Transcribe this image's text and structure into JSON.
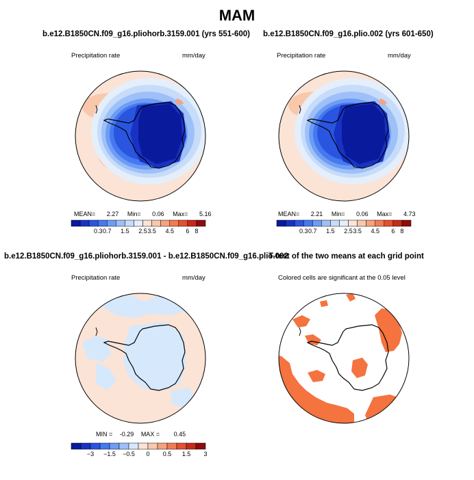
{
  "title": "MAM",
  "colors": {
    "deep_blue": "#0a1a9c",
    "coast": "#000000",
    "sig": "#f4733f"
  },
  "panels": [
    {
      "title": "b.e12.B1850CN.f09_g16.pliohorb.3159.001 (yrs 551-600)",
      "left_label": "Precipitation rate",
      "right_label": "mm/day",
      "stats": {
        "mean_label": "MEAN=",
        "mean": "2.27",
        "min_label": "Min=",
        "min": "0.06",
        "max_label": "Max=",
        "max": "5.16"
      }
    },
    {
      "title": "b.e12.B1850CN.f09_g16.plio.002 (yrs 601-650)",
      "left_label": "Precipitation rate",
      "right_label": "mm/day",
      "stats": {
        "mean_label": "MEAN=",
        "mean": "2.21",
        "min_label": "Min=",
        "min": "0.06",
        "max_label": "Max=",
        "max": "4.73"
      }
    },
    {
      "title": "b.e12.B1850CN.f09_g16.pliohorb.3159.001 - b.e12.B1850CN.f09_g16.plio.002",
      "left_label": "Precipitation rate",
      "right_label": "mm/day",
      "stats": {
        "min_label": "MIN =",
        "min": "-0.29",
        "max_label": "MAX =",
        "max": "0.45"
      }
    },
    {
      "title": "T-test of the two means at each grid point",
      "center_label": "Colored cells are significant at the 0.05 level"
    }
  ],
  "chart_data": [
    {
      "type": "heatmap",
      "title": "b.e12.B1850CN.f09_g16.pliohorb.3159.001 (yrs 551-600)",
      "variable": "Precipitation rate",
      "units": "mm/day",
      "projection": "south polar stereographic",
      "colorbar": {
        "tick_labels": [
          "0.3",
          "0.7",
          "1.5",
          "2.5",
          "3.5",
          "4.5",
          "6",
          "8"
        ],
        "colors": [
          "#0a1a9c",
          "#1732c4",
          "#2a55e0",
          "#4479ef",
          "#6e9cf4",
          "#9ec0f8",
          "#c6dcfa",
          "#e4effb",
          "#fbe3d6",
          "#f9c8ab",
          "#f6a27e",
          "#f27b53",
          "#e4502f",
          "#c62a1b",
          "#8f0c0c"
        ]
      },
      "stats": {
        "mean": 2.27,
        "min": 0.06,
        "max": 5.16
      }
    },
    {
      "type": "heatmap",
      "title": "b.e12.B1850CN.f09_g16.plio.002 (yrs 601-650)",
      "variable": "Precipitation rate",
      "units": "mm/day",
      "projection": "south polar stereographic",
      "colorbar": {
        "tick_labels": [
          "0.3",
          "0.7",
          "1.5",
          "2.5",
          "3.5",
          "4.5",
          "6",
          "8"
        ],
        "colors": [
          "#0a1a9c",
          "#1732c4",
          "#2a55e0",
          "#4479ef",
          "#6e9cf4",
          "#9ec0f8",
          "#c6dcfa",
          "#e4effb",
          "#fbe3d6",
          "#f9c8ab",
          "#f6a27e",
          "#f27b53",
          "#e4502f",
          "#c62a1b",
          "#8f0c0c"
        ]
      },
      "stats": {
        "mean": 2.21,
        "min": 0.06,
        "max": 4.73
      }
    },
    {
      "type": "heatmap",
      "title": "b.e12.B1850CN.f09_g16.pliohorb.3159.001 - b.e12.B1850CN.f09_g16.plio.002",
      "variable": "Precipitation rate",
      "units": "mm/day",
      "projection": "south polar stereographic",
      "colorbar": {
        "tick_labels": [
          "−3",
          "−1.5",
          "−0.5",
          "0",
          "0.5",
          "1.5",
          "3"
        ],
        "colors": [
          "#0a1a9c",
          "#1732c4",
          "#2a55e0",
          "#4479ef",
          "#6e9cf4",
          "#9ec0f8",
          "#d6e8fb",
          "#fbe3d6",
          "#f9c8ab",
          "#f6a27e",
          "#f27b53",
          "#e4502f",
          "#c62a1b",
          "#8f0c0c"
        ]
      },
      "stats": {
        "min": -0.29,
        "max": 0.45
      }
    },
    {
      "type": "heatmap",
      "title": "T-test of the two means at each grid point",
      "note": "Colored cells are significant at the 0.05 level",
      "projection": "south polar stereographic",
      "significance_level": 0.05
    }
  ]
}
